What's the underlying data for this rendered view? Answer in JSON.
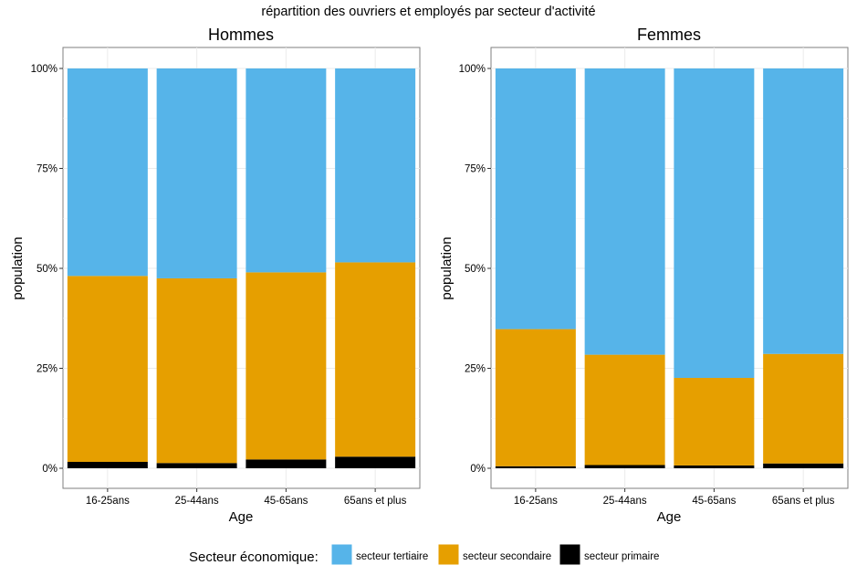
{
  "title": "répartition des ouvriers et employés par secteur d'activité",
  "legend": {
    "title": "Secteur économique:",
    "items": [
      {
        "label": "secteur tertiaire",
        "color": "#56B4E9"
      },
      {
        "label": "secteur secondaire",
        "color": "#E69F00"
      },
      {
        "label": "secteur primaire",
        "color": "#000000"
      }
    ]
  },
  "chart_data": [
    {
      "type": "bar",
      "stacked": true,
      "title": "Hommes",
      "xlabel": "Age",
      "ylabel": "population",
      "ylim": [
        0,
        1
      ],
      "yticks": [
        "0%",
        "25%",
        "50%",
        "75%",
        "100%"
      ],
      "categories": [
        "16-25ans",
        "25-44ans",
        "45-65ans",
        "65ans et plus"
      ],
      "series": [
        {
          "name": "secteur primaire",
          "values": [
            0.016,
            0.013,
            0.022,
            0.029
          ]
        },
        {
          "name": "secteur secondaire",
          "values": [
            0.465,
            0.462,
            0.468,
            0.486
          ]
        },
        {
          "name": "secteur tertiaire",
          "values": [
            0.519,
            0.525,
            0.51,
            0.485
          ]
        }
      ]
    },
    {
      "type": "bar",
      "stacked": true,
      "title": "Femmes",
      "xlabel": "Age",
      "ylabel": "population",
      "ylim": [
        0,
        1
      ],
      "yticks": [
        "0%",
        "25%",
        "50%",
        "75%",
        "100%"
      ],
      "categories": [
        "16-25ans",
        "25-44ans",
        "45-65ans",
        "65ans et plus"
      ],
      "series": [
        {
          "name": "secteur primaire",
          "values": [
            0.005,
            0.008,
            0.007,
            0.012
          ]
        },
        {
          "name": "secteur secondaire",
          "values": [
            0.343,
            0.276,
            0.219,
            0.274
          ]
        },
        {
          "name": "secteur tertiaire",
          "values": [
            0.652,
            0.716,
            0.774,
            0.714
          ]
        }
      ]
    }
  ]
}
